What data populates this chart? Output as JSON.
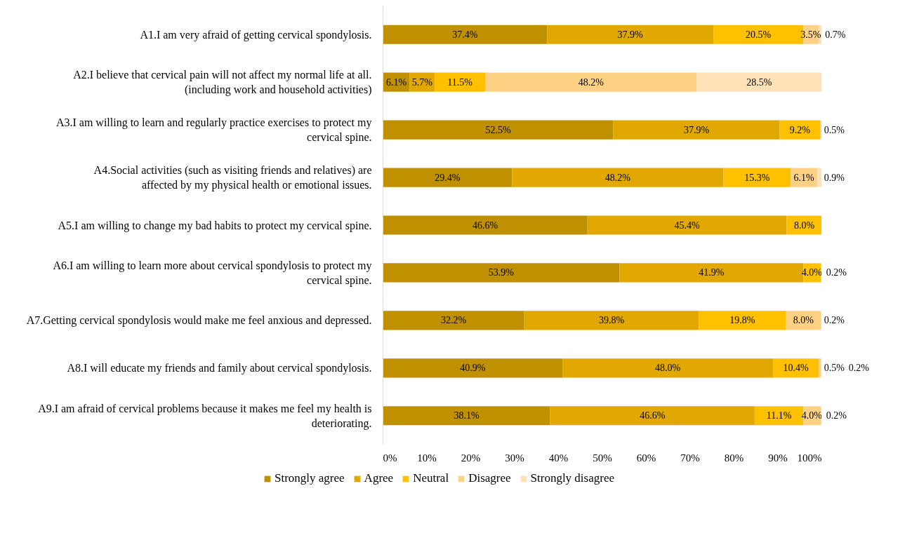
{
  "chart_data": {
    "type": "bar",
    "orientation": "horizontal",
    "stacked": true,
    "categories": [
      "A1.I am very afraid of getting cervical spondylosis.",
      "A2.I believe that cervical pain will not affect my normal life at all. (including work and household activities)",
      "A3.I am willing to learn and regularly practice exercises to protect my cervical spine.",
      "A4.Social activities (such as visiting friends and relatives) are affected by my physical health or emotional issues.",
      "A5.I am willing to change my bad habits to protect my cervical spine.",
      "A6.I am willing to learn more about cervical spondylosis to protect my cervical spine.",
      "A7.Getting cervical spondylosis would make me feel anxious and depressed.",
      "A8.I will educate my friends and family about cervical spondylosis.",
      "A9.I am afraid of cervical problems because it makes me feel my health is deteriorating."
    ],
    "series": [
      {
        "name": "Strongly agree",
        "color": "#bf9000",
        "values": [
          37.4,
          6.1,
          52.5,
          29.4,
          46.6,
          53.9,
          32.2,
          40.9,
          38.1
        ],
        "value_labels": [
          "37.4%",
          "6.1%",
          "52.5%",
          "29.4%",
          "46.6%",
          "53.9%",
          "32.2%",
          "40.9%",
          "38.1%"
        ]
      },
      {
        "name": "Agree",
        "color": "#e0a800",
        "values": [
          37.9,
          5.7,
          37.9,
          48.2,
          45.4,
          41.9,
          39.8,
          48.0,
          46.6
        ],
        "value_labels": [
          "37.9%",
          "5.7%",
          "37.9%",
          "48.2%",
          "45.4%",
          "41.9%",
          "39.8%",
          "48.0%",
          "46.6%"
        ]
      },
      {
        "name": "Neutral",
        "color": "#ffc000",
        "values": [
          20.5,
          11.5,
          9.2,
          15.3,
          8.0,
          4.0,
          19.8,
          10.4,
          11.1
        ],
        "value_labels": [
          "20.5%",
          "11.5%",
          "9.2%",
          "15.3%",
          "8.0%",
          "4.0%",
          "19.8%",
          "10.4%",
          "11.1%"
        ]
      },
      {
        "name": "Disagree",
        "color": "#ffd185",
        "values": [
          3.5,
          48.2,
          0.5,
          6.1,
          null,
          0.2,
          8.0,
          0.5,
          4.0
        ],
        "value_labels": [
          "3.5%",
          "48.2%",
          "0.5%",
          "6.1%",
          null,
          "0.2%",
          "8.0%",
          "0.5%",
          "4.0%"
        ]
      },
      {
        "name": "Strongly disagree",
        "color": "#ffe2b8",
        "values": [
          0.7,
          28.5,
          null,
          0.9,
          null,
          null,
          0.2,
          0.2,
          0.2
        ],
        "value_labels": [
          "0.7%",
          "28.5%",
          null,
          "0.9%",
          null,
          null,
          "0.2%",
          "0.2%",
          "0.2%"
        ]
      }
    ],
    "xlim": [
      0,
      100
    ],
    "xticks": [
      {
        "value": 0,
        "label": "0%"
      },
      {
        "value": 10,
        "label": "10%"
      },
      {
        "value": 20,
        "label": "20%"
      },
      {
        "value": 30,
        "label": "30%"
      },
      {
        "value": 40,
        "label": "40%"
      },
      {
        "value": 50,
        "label": "50%"
      },
      {
        "value": 60,
        "label": "60%"
      },
      {
        "value": 70,
        "label": "70%"
      },
      {
        "value": 80,
        "label": "80%"
      },
      {
        "value": 90,
        "label": "90%"
      },
      {
        "value": 100,
        "label": "100%"
      }
    ],
    "grid": false,
    "legend": "bottom"
  }
}
